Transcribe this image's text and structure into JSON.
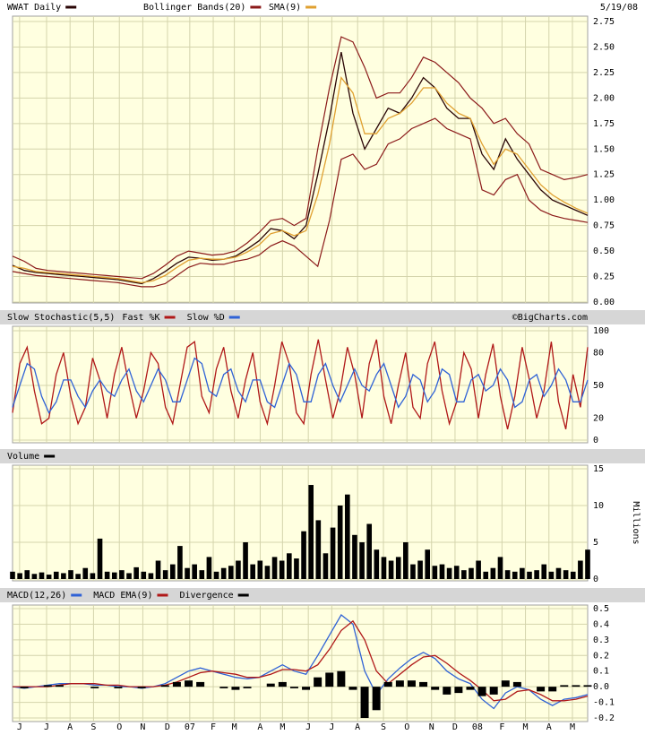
{
  "chart_data": [
    {
      "type": "line",
      "date": "5/19/08",
      "xlim": [
        0,
        49
      ],
      "ylim": [
        0,
        2.75
      ],
      "yticks": [
        {
          "value": 0,
          "label": "0.00"
        },
        0.25,
        {
          "value": 0.5,
          "label": "0.50"
        },
        0.75,
        {
          "value": 1,
          "label": "1.00"
        },
        1.25,
        {
          "value": 1.5,
          "label": "1.50"
        },
        1.75,
        {
          "value": 2,
          "label": "2.00"
        },
        2.25,
        {
          "value": 2.5,
          "label": "2.50"
        },
        2.75
      ],
      "grid": true,
      "series": [
        {
          "name": "WWAT Daily",
          "color": "#2a0505",
          "values": [
            0.36,
            0.31,
            0.29,
            0.28,
            0.27,
            0.26,
            0.25,
            0.24,
            0.23,
            0.22,
            0.2,
            0.18,
            0.23,
            0.3,
            0.38,
            0.44,
            0.43,
            0.41,
            0.42,
            0.45,
            0.52,
            0.6,
            0.72,
            0.7,
            0.62,
            0.75,
            1.25,
            1.8,
            2.45,
            1.85,
            1.5,
            1.7,
            1.9,
            1.85,
            2.0,
            2.2,
            2.1,
            1.9,
            1.8,
            1.8,
            1.45,
            1.3,
            1.6,
            1.4,
            1.25,
            1.1,
            1.0,
            0.95,
            0.9,
            0.85
          ]
        },
        {
          "name": "Bollinger Bands(20)",
          "color": "#8b1a1a",
          "upper": [
            0.45,
            0.4,
            0.33,
            0.31,
            0.3,
            0.29,
            0.28,
            0.27,
            0.26,
            0.25,
            0.24,
            0.23,
            0.28,
            0.36,
            0.45,
            0.5,
            0.48,
            0.46,
            0.47,
            0.5,
            0.58,
            0.68,
            0.8,
            0.82,
            0.75,
            0.82,
            1.5,
            2.1,
            2.6,
            2.55,
            2.3,
            2.0,
            2.05,
            2.05,
            2.2,
            2.4,
            2.35,
            2.25,
            2.15,
            2.0,
            1.9,
            1.75,
            1.8,
            1.65,
            1.55,
            1.3,
            1.25,
            1.2,
            1.22,
            1.25
          ],
          "lower": [
            0.3,
            0.28,
            0.26,
            0.25,
            0.24,
            0.23,
            0.22,
            0.21,
            0.2,
            0.19,
            0.17,
            0.15,
            0.15,
            0.18,
            0.26,
            0.34,
            0.38,
            0.37,
            0.37,
            0.4,
            0.42,
            0.46,
            0.55,
            0.6,
            0.55,
            0.45,
            0.35,
            0.8,
            1.4,
            1.45,
            1.3,
            1.35,
            1.55,
            1.6,
            1.7,
            1.75,
            1.8,
            1.7,
            1.65,
            1.6,
            1.1,
            1.05,
            1.2,
            1.25,
            1.0,
            0.9,
            0.85,
            0.82,
            0.8,
            0.78
          ]
        },
        {
          "name": "SMA(9)",
          "color": "#e0a030",
          "values": [
            0.35,
            0.33,
            0.3,
            0.29,
            0.28,
            0.27,
            0.26,
            0.25,
            0.24,
            0.23,
            0.21,
            0.19,
            0.21,
            0.26,
            0.34,
            0.41,
            0.43,
            0.42,
            0.42,
            0.44,
            0.49,
            0.56,
            0.67,
            0.7,
            0.65,
            0.7,
            1.05,
            1.55,
            2.2,
            2.05,
            1.65,
            1.65,
            1.8,
            1.85,
            1.95,
            2.1,
            2.1,
            1.95,
            1.85,
            1.8,
            1.55,
            1.35,
            1.5,
            1.45,
            1.3,
            1.15,
            1.05,
            0.98,
            0.92,
            0.87
          ]
        }
      ]
    },
    {
      "type": "line",
      "title": "Slow Stochastic(5,5)",
      "credit": "©BigCharts.com",
      "xlim": [
        0,
        79
      ],
      "ylim": [
        0,
        100
      ],
      "yticks": [
        0,
        20,
        50,
        80,
        100
      ],
      "grid": true,
      "series": [
        {
          "name": "Fast %K",
          "color": "#b01818",
          "values": [
            25,
            70,
            85,
            45,
            15,
            20,
            60,
            80,
            40,
            15,
            30,
            75,
            55,
            20,
            60,
            85,
            50,
            20,
            45,
            80,
            70,
            30,
            15,
            50,
            85,
            90,
            40,
            25,
            65,
            85,
            45,
            20,
            55,
            80,
            35,
            15,
            50,
            90,
            70,
            25,
            15,
            60,
            92,
            55,
            20,
            45,
            85,
            60,
            20,
            70,
            92,
            40,
            15,
            50,
            80,
            30,
            20,
            70,
            90,
            45,
            15,
            35,
            80,
            65,
            20,
            60,
            88,
            40,
            10,
            40,
            85,
            55,
            20,
            45,
            90,
            35,
            10,
            60,
            30,
            85
          ]
        },
        {
          "name": "Slow %D",
          "color": "#2f62d6",
          "values": [
            30,
            50,
            70,
            65,
            40,
            25,
            35,
            55,
            55,
            40,
            30,
            45,
            55,
            45,
            40,
            55,
            65,
            45,
            35,
            50,
            65,
            55,
            35,
            35,
            55,
            75,
            70,
            45,
            40,
            60,
            65,
            45,
            35,
            55,
            55,
            35,
            30,
            50,
            70,
            60,
            35,
            35,
            60,
            70,
            50,
            35,
            50,
            65,
            50,
            45,
            60,
            70,
            50,
            30,
            40,
            60,
            55,
            35,
            45,
            65,
            60,
            35,
            35,
            55,
            60,
            45,
            50,
            65,
            55,
            30,
            35,
            55,
            60,
            40,
            50,
            65,
            55,
            35,
            35,
            55
          ]
        }
      ]
    },
    {
      "type": "bar",
      "ylabel": "Millions",
      "xlim": [
        0,
        79
      ],
      "ylim": [
        0,
        15
      ],
      "yticks": [
        0,
        5,
        10,
        15
      ],
      "grid": true,
      "series": [
        {
          "name": "Volume",
          "color": "#000000",
          "values": [
            1.0,
            0.8,
            1.2,
            0.7,
            0.9,
            0.6,
            1.0,
            0.8,
            1.2,
            0.7,
            1.5,
            0.8,
            5.5,
            1.0,
            0.9,
            1.2,
            0.8,
            1.6,
            1.0,
            0.8,
            2.5,
            1.2,
            2.0,
            4.5,
            1.5,
            2.0,
            1.2,
            3.0,
            1.0,
            1.5,
            1.8,
            2.5,
            5.0,
            2.0,
            2.5,
            1.8,
            3.0,
            2.5,
            3.5,
            2.8,
            6.5,
            12.8,
            8.0,
            3.5,
            7.0,
            10.0,
            11.5,
            6.0,
            5.0,
            7.5,
            4.0,
            3.0,
            2.5,
            3.0,
            5.0,
            2.0,
            2.5,
            4.0,
            1.8,
            2.0,
            1.5,
            1.8,
            1.2,
            1.5,
            2.5,
            1.0,
            1.5,
            3.0,
            1.2,
            1.0,
            1.5,
            1.0,
            1.2,
            2.0,
            1.0,
            1.5,
            1.2,
            1.0,
            2.5,
            4.0
          ]
        }
      ]
    },
    {
      "type": "line",
      "xlim": [
        0,
        49
      ],
      "ylim": [
        -0.2,
        0.5
      ],
      "yticks": [
        -0.2,
        -0.1,
        {
          "value": 0,
          "label": "0.0"
        },
        0.1,
        0.2,
        0.3,
        0.4,
        0.5
      ],
      "grid": true,
      "xticks": [
        {
          "value": 0.6,
          "label": "J"
        },
        {
          "value": 2.9,
          "label": "J"
        },
        {
          "value": 4.9,
          "label": "A"
        },
        {
          "value": 6.9,
          "label": "S"
        },
        {
          "value": 9.1,
          "label": "O"
        },
        {
          "value": 11.1,
          "label": "N"
        },
        {
          "value": 13.2,
          "label": "D"
        },
        {
          "value": 15.1,
          "label": "07"
        },
        {
          "value": 17.1,
          "label": "F"
        },
        {
          "value": 18.9,
          "label": "M"
        },
        {
          "value": 21.1,
          "label": "A"
        },
        {
          "value": 23.0,
          "label": "M"
        },
        {
          "value": 25.2,
          "label": "J"
        },
        {
          "value": 27.2,
          "label": "J"
        },
        {
          "value": 29.4,
          "label": "A"
        },
        {
          "value": 31.6,
          "label": "S"
        },
        {
          "value": 33.6,
          "label": "O"
        },
        {
          "value": 35.7,
          "label": "N"
        },
        {
          "value": 37.7,
          "label": "D"
        },
        {
          "value": 39.6,
          "label": "08"
        },
        {
          "value": 41.7,
          "label": "F"
        },
        {
          "value": 43.7,
          "label": "M"
        },
        {
          "value": 45.7,
          "label": "A"
        },
        {
          "value": 47.7,
          "label": "M"
        }
      ],
      "series": [
        {
          "name": "MACD(12,26)",
          "color": "#2f62d6",
          "values": [
            0.0,
            -0.01,
            0.0,
            0.01,
            0.02,
            0.02,
            0.02,
            0.01,
            0.01,
            0.0,
            0.0,
            -0.01,
            0.0,
            0.02,
            0.06,
            0.1,
            0.12,
            0.1,
            0.08,
            0.06,
            0.05,
            0.06,
            0.1,
            0.14,
            0.1,
            0.08,
            0.2,
            0.33,
            0.46,
            0.4,
            0.1,
            -0.05,
            0.05,
            0.12,
            0.18,
            0.22,
            0.18,
            0.1,
            0.05,
            0.02,
            -0.08,
            -0.14,
            -0.04,
            0.0,
            -0.02,
            -0.08,
            -0.12,
            -0.08,
            -0.07,
            -0.05
          ]
        },
        {
          "name": "MACD EMA(9)",
          "color": "#b01818",
          "values": [
            0.0,
            0.0,
            0.0,
            0.0,
            0.01,
            0.02,
            0.02,
            0.02,
            0.01,
            0.01,
            0.0,
            0.0,
            0.0,
            0.01,
            0.03,
            0.06,
            0.09,
            0.1,
            0.09,
            0.08,
            0.06,
            0.06,
            0.08,
            0.11,
            0.11,
            0.1,
            0.14,
            0.24,
            0.36,
            0.42,
            0.3,
            0.1,
            0.02,
            0.08,
            0.14,
            0.19,
            0.2,
            0.15,
            0.09,
            0.04,
            -0.02,
            -0.09,
            -0.08,
            -0.03,
            -0.02,
            -0.05,
            -0.09,
            -0.09,
            -0.08,
            -0.06
          ]
        },
        {
          "name": "Divergence",
          "type": "bar",
          "color": "#000000",
          "values": [
            0.0,
            -0.01,
            0.0,
            0.01,
            0.01,
            0.0,
            0.0,
            -0.01,
            0.0,
            -0.01,
            0.0,
            -0.01,
            0.0,
            0.01,
            0.03,
            0.04,
            0.03,
            0.0,
            -0.01,
            -0.02,
            -0.01,
            0.0,
            0.02,
            0.03,
            -0.01,
            -0.02,
            0.06,
            0.09,
            0.1,
            -0.02,
            -0.2,
            -0.15,
            0.03,
            0.04,
            0.04,
            0.03,
            -0.02,
            -0.05,
            -0.04,
            -0.02,
            -0.06,
            -0.05,
            0.04,
            0.03,
            0.0,
            -0.03,
            -0.03,
            0.01,
            0.01,
            0.01
          ]
        }
      ]
    }
  ]
}
